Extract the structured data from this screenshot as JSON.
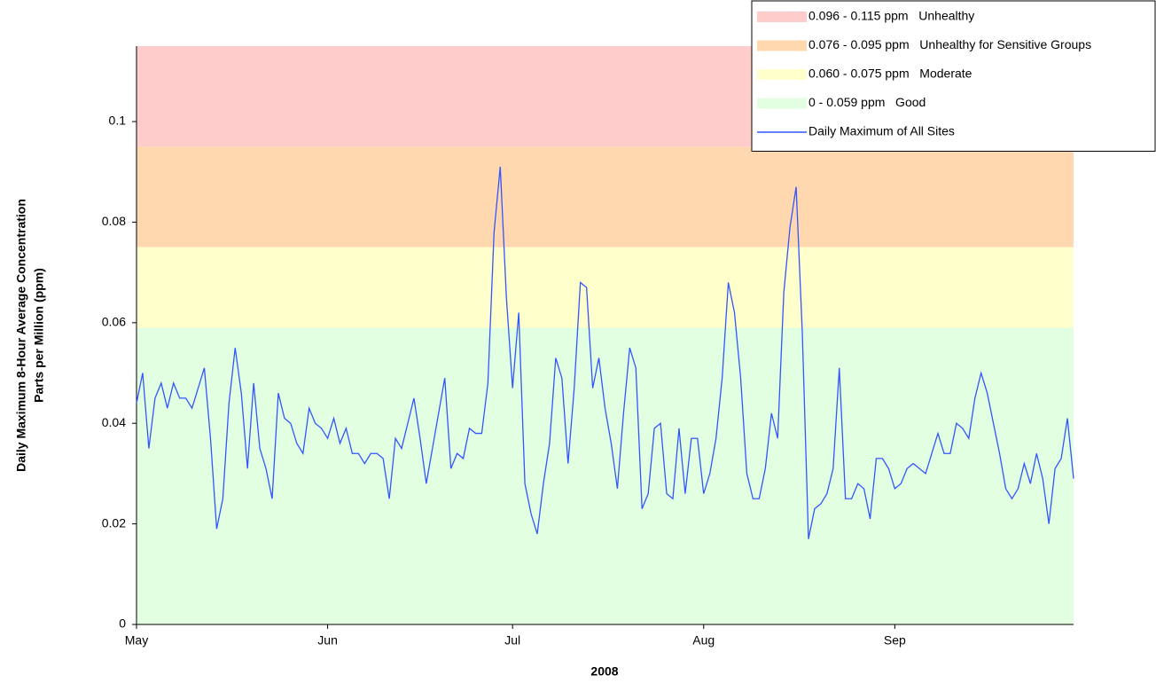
{
  "chart_data": {
    "type": "line",
    "xlabel": "2008",
    "ylabel": [
      "Daily Maximum 8-Hour Average Concentration",
      "Parts per Million (ppm)"
    ],
    "categories": [
      "May",
      null,
      null,
      null,
      null,
      null,
      null,
      null,
      null,
      null,
      null,
      null,
      null,
      null,
      null,
      null,
      null,
      null,
      null,
      null,
      null,
      null,
      null,
      null,
      null,
      null,
      null,
      null,
      null,
      null,
      null,
      "Jun",
      null,
      null,
      null,
      null,
      null,
      null,
      null,
      null,
      null,
      null,
      null,
      null,
      null,
      null,
      null,
      null,
      null,
      null,
      null,
      null,
      null,
      null,
      null,
      null,
      null,
      null,
      null,
      null,
      null,
      "Jul",
      null,
      null,
      null,
      null,
      null,
      null,
      null,
      null,
      null,
      null,
      null,
      null,
      null,
      null,
      null,
      null,
      null,
      null,
      null,
      null,
      null,
      null,
      null,
      null,
      null,
      null,
      null,
      null,
      null,
      null,
      "Aug",
      null,
      null,
      null,
      null,
      null,
      null,
      null,
      null,
      null,
      null,
      null,
      null,
      null,
      null,
      null,
      null,
      null,
      null,
      null,
      null,
      null,
      null,
      null,
      null,
      null,
      null,
      null,
      null,
      null,
      null,
      "Sep",
      null,
      null,
      null,
      null,
      null,
      null,
      null,
      null,
      null,
      null,
      null,
      null,
      null,
      null,
      null,
      null,
      null,
      null,
      null,
      null,
      null,
      null,
      null,
      null,
      null,
      null,
      null,
      null,
      null
    ],
    "bands": [
      {
        "name": "0.096 - 0.115 ppm   Unhealthy",
        "color": "#ffcccc",
        "range": [
          0.095,
          0.115
        ]
      },
      {
        "name": "0.076 - 0.095 ppm   Unhealthy for Sensitive Groups",
        "color": "#ffd8b0",
        "range": [
          0.075,
          0.095
        ]
      },
      {
        "name": "0.060 - 0.075 ppm   Moderate",
        "color": "#ffffcc",
        "range": [
          0.059,
          0.075
        ]
      },
      {
        "name": "0 - 0.059 ppm   Good",
        "color": "#e2ffe2",
        "range": [
          0,
          0.059
        ]
      }
    ],
    "series": [
      {
        "name": "Daily Maximum of All Sites",
        "color": "#3355ff",
        "values": [
          0.044,
          0.05,
          0.035,
          0.045,
          0.048,
          0.043,
          0.048,
          0.045,
          0.045,
          0.043,
          0.047,
          0.051,
          0.037,
          0.019,
          0.025,
          0.044,
          0.055,
          0.046,
          0.031,
          0.048,
          0.035,
          0.031,
          0.025,
          0.046,
          0.041,
          0.04,
          0.036,
          0.034,
          0.043,
          0.04,
          0.039,
          0.037,
          0.041,
          0.036,
          0.039,
          0.034,
          0.034,
          0.032,
          0.034,
          0.034,
          0.033,
          0.025,
          0.037,
          0.035,
          0.04,
          0.045,
          0.037,
          0.028,
          0.035,
          0.042,
          0.049,
          0.031,
          0.034,
          0.033,
          0.039,
          0.038,
          0.038,
          0.048,
          0.078,
          0.091,
          0.065,
          0.047,
          0.062,
          0.028,
          0.022,
          0.018,
          0.028,
          0.036,
          0.053,
          0.049,
          0.032,
          0.047,
          0.068,
          0.067,
          0.047,
          0.053,
          0.043,
          0.036,
          0.027,
          0.042,
          0.055,
          0.051,
          0.023,
          0.026,
          0.039,
          0.04,
          0.026,
          0.025,
          0.039,
          0.026,
          0.037,
          0.037,
          0.026,
          0.03,
          0.037,
          0.049,
          0.068,
          0.062,
          0.049,
          0.03,
          0.025,
          0.025,
          0.031,
          0.042,
          0.037,
          0.066,
          0.079,
          0.087,
          0.058,
          0.017,
          0.023,
          0.024,
          0.026,
          0.031,
          0.051,
          0.025,
          0.025,
          0.028,
          0.027,
          0.021,
          0.033,
          0.033,
          0.031,
          0.027,
          0.028,
          0.031,
          0.032,
          0.031,
          0.03,
          0.034,
          0.038,
          0.034,
          0.034,
          0.04,
          0.039,
          0.037,
          0.045,
          0.05,
          0.046,
          0.04,
          0.034,
          0.027,
          0.025,
          0.027,
          0.032,
          0.028,
          0.034,
          0.029,
          0.02,
          0.031,
          0.033,
          0.041,
          0.029
        ]
      }
    ],
    "ylim": [
      0,
      0.115
    ],
    "yticks": [
      0,
      0.02,
      0.04,
      0.06,
      0.08,
      0.1
    ],
    "legend": "top right"
  }
}
